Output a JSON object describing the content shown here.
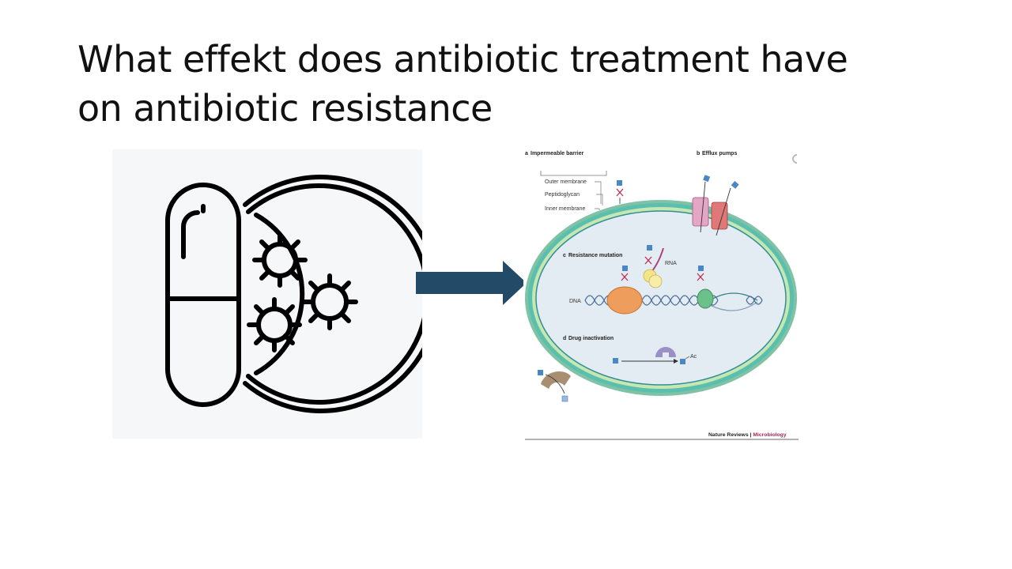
{
  "slide": {
    "title_lines": [
      "What effekt does antibiotic treatment have",
      "on antibiotic resistance"
    ]
  },
  "icons": {
    "pill": "capsule-icon",
    "petri_dish": "petri-dish-bacteria-icon",
    "arrow": "right-arrow",
    "arrow_color": "#234a66"
  },
  "figure": {
    "panels": {
      "a": {
        "letter": "a",
        "label": "Impermeable barrier"
      },
      "b": {
        "letter": "b",
        "label": "Efflux pumps"
      },
      "c": {
        "letter": "c",
        "label": "Resistance mutation"
      },
      "d": {
        "letter": "d",
        "label": "Drug inactivation"
      }
    },
    "membrane_labels": [
      "Outer membrane",
      "Peptidoglycan",
      "Inner membrane"
    ],
    "rna_label": "RNA",
    "dna_label": "DNA",
    "ac_label": "Ac",
    "source": {
      "journal": "Nature Reviews",
      "separator": " | ",
      "section": "Microbiology"
    }
  }
}
